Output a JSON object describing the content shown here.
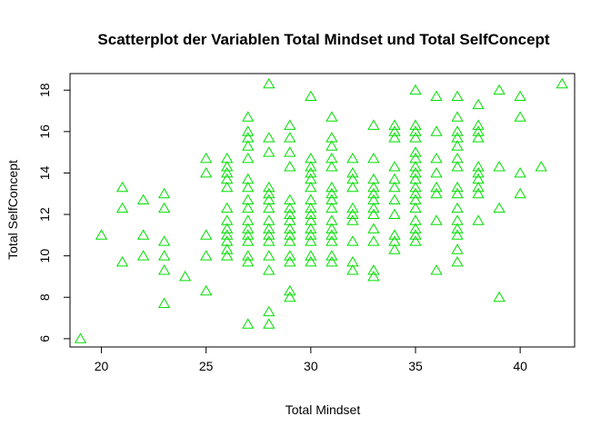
{
  "chart_data": {
    "type": "scatter",
    "title": "Scatterplot der Variablen Total Mindset und Total SelfConcept",
    "xlabel": "Total Mindset",
    "ylabel": "Total SelfConcept",
    "xlim": [
      18.5,
      42.6
    ],
    "ylim": [
      5.6,
      18.8
    ],
    "x_ticks": [
      20,
      25,
      30,
      35,
      40
    ],
    "y_ticks": [
      6,
      8,
      10,
      12,
      14,
      16,
      18
    ],
    "grid": false,
    "legend": "none",
    "marker": "triangle-open",
    "point_color": "#00dd00",
    "points": [
      [
        19,
        6
      ],
      [
        20,
        11
      ],
      [
        21,
        13.3
      ],
      [
        21,
        12.3
      ],
      [
        21,
        9.7
      ],
      [
        22,
        12.7
      ],
      [
        22,
        11
      ],
      [
        22,
        10
      ],
      [
        23,
        13
      ],
      [
        23,
        12.3
      ],
      [
        23,
        10.7
      ],
      [
        23,
        10
      ],
      [
        23,
        9.3
      ],
      [
        23,
        7.7
      ],
      [
        24,
        9
      ],
      [
        25,
        14.7
      ],
      [
        25,
        14
      ],
      [
        25,
        11
      ],
      [
        25,
        10
      ],
      [
        25,
        8.3
      ],
      [
        26,
        14.7
      ],
      [
        26,
        14.3
      ],
      [
        26,
        14
      ],
      [
        26,
        13.7
      ],
      [
        26,
        13.3
      ],
      [
        26,
        12.3
      ],
      [
        26,
        11.7
      ],
      [
        26,
        11.3
      ],
      [
        26,
        11
      ],
      [
        26,
        10.7
      ],
      [
        26,
        10.3
      ],
      [
        26,
        10
      ],
      [
        27,
        16.7
      ],
      [
        27,
        16
      ],
      [
        27,
        15.7
      ],
      [
        27,
        15.3
      ],
      [
        27,
        14.7
      ],
      [
        27,
        13.7
      ],
      [
        27,
        13.3
      ],
      [
        27,
        12.7
      ],
      [
        27,
        12.3
      ],
      [
        27,
        11.7
      ],
      [
        27,
        11.3
      ],
      [
        27,
        11
      ],
      [
        27,
        10.7
      ],
      [
        27,
        10
      ],
      [
        27,
        9.7
      ],
      [
        27,
        6.7
      ],
      [
        28,
        18.3
      ],
      [
        28,
        15.7
      ],
      [
        28,
        15
      ],
      [
        28,
        13.3
      ],
      [
        28,
        13
      ],
      [
        28,
        12.7
      ],
      [
        28,
        12.3
      ],
      [
        28,
        11.7
      ],
      [
        28,
        11.3
      ],
      [
        28,
        11
      ],
      [
        28,
        10.7
      ],
      [
        28,
        10
      ],
      [
        28,
        9.3
      ],
      [
        28,
        7.3
      ],
      [
        28,
        6.7
      ],
      [
        29,
        16.3
      ],
      [
        29,
        15.7
      ],
      [
        29,
        15
      ],
      [
        29,
        14.3
      ],
      [
        29,
        12.7
      ],
      [
        29,
        12.3
      ],
      [
        29,
        12
      ],
      [
        29,
        11.7
      ],
      [
        29,
        11.3
      ],
      [
        29,
        11
      ],
      [
        29,
        10.7
      ],
      [
        29,
        10
      ],
      [
        29,
        9.7
      ],
      [
        29,
        8.3
      ],
      [
        29,
        8
      ],
      [
        30,
        17.7
      ],
      [
        30,
        14.7
      ],
      [
        30,
        14.3
      ],
      [
        30,
        14
      ],
      [
        30,
        13.7
      ],
      [
        30,
        13.3
      ],
      [
        30,
        12.7
      ],
      [
        30,
        12.3
      ],
      [
        30,
        12
      ],
      [
        30,
        11.7
      ],
      [
        30,
        11.3
      ],
      [
        30,
        11
      ],
      [
        30,
        10.7
      ],
      [
        30,
        10
      ],
      [
        30,
        9.7
      ],
      [
        31,
        16.7
      ],
      [
        31,
        15.7
      ],
      [
        31,
        15.3
      ],
      [
        31,
        14.7
      ],
      [
        31,
        14.3
      ],
      [
        31,
        13.3
      ],
      [
        31,
        13
      ],
      [
        31,
        12.7
      ],
      [
        31,
        12.3
      ],
      [
        31,
        11.7
      ],
      [
        31,
        11.3
      ],
      [
        31,
        11
      ],
      [
        31,
        10.7
      ],
      [
        31,
        10
      ],
      [
        31,
        9.7
      ],
      [
        32,
        14.7
      ],
      [
        32,
        14
      ],
      [
        32,
        13.7
      ],
      [
        32,
        13.3
      ],
      [
        32,
        12.3
      ],
      [
        32,
        12
      ],
      [
        32,
        11.7
      ],
      [
        32,
        10.7
      ],
      [
        32,
        9.7
      ],
      [
        32,
        9.3
      ],
      [
        33,
        16.3
      ],
      [
        33,
        14.7
      ],
      [
        33,
        13.7
      ],
      [
        33,
        13.3
      ],
      [
        33,
        13
      ],
      [
        33,
        12.7
      ],
      [
        33,
        12.3
      ],
      [
        33,
        12
      ],
      [
        33,
        11.3
      ],
      [
        33,
        10.7
      ],
      [
        33,
        9.3
      ],
      [
        33,
        9
      ],
      [
        34,
        16.3
      ],
      [
        34,
        16
      ],
      [
        34,
        15.7
      ],
      [
        34,
        14.3
      ],
      [
        34,
        13.7
      ],
      [
        34,
        13.3
      ],
      [
        34,
        12.7
      ],
      [
        34,
        12
      ],
      [
        34,
        11
      ],
      [
        34,
        10.7
      ],
      [
        34,
        10.3
      ],
      [
        35,
        18
      ],
      [
        35,
        16.3
      ],
      [
        35,
        16
      ],
      [
        35,
        15.7
      ],
      [
        35,
        15
      ],
      [
        35,
        14.7
      ],
      [
        35,
        14.3
      ],
      [
        35,
        14
      ],
      [
        35,
        13.7
      ],
      [
        35,
        13.3
      ],
      [
        35,
        13
      ],
      [
        35,
        12.7
      ],
      [
        35,
        12.3
      ],
      [
        35,
        11.7
      ],
      [
        35,
        11.3
      ],
      [
        35,
        11
      ],
      [
        35,
        10.7
      ],
      [
        36,
        17.7
      ],
      [
        36,
        16
      ],
      [
        36,
        14.7
      ],
      [
        36,
        14
      ],
      [
        36,
        13.3
      ],
      [
        36,
        13
      ],
      [
        36,
        11.7
      ],
      [
        36,
        9.3
      ],
      [
        37,
        17.7
      ],
      [
        37,
        16.7
      ],
      [
        37,
        16
      ],
      [
        37,
        15.7
      ],
      [
        37,
        15.3
      ],
      [
        37,
        14.7
      ],
      [
        37,
        14.3
      ],
      [
        37,
        13.3
      ],
      [
        37,
        13
      ],
      [
        37,
        12.3
      ],
      [
        37,
        11.7
      ],
      [
        37,
        11.3
      ],
      [
        37,
        11
      ],
      [
        37,
        10.3
      ],
      [
        37,
        9.7
      ],
      [
        38,
        17.3
      ],
      [
        38,
        16.3
      ],
      [
        38,
        16
      ],
      [
        38,
        15.7
      ],
      [
        38,
        14.3
      ],
      [
        38,
        14
      ],
      [
        38,
        13.7
      ],
      [
        38,
        13.3
      ],
      [
        38,
        13
      ],
      [
        38,
        11.7
      ],
      [
        39,
        18
      ],
      [
        39,
        14.3
      ],
      [
        39,
        12.3
      ],
      [
        39,
        8
      ],
      [
        40,
        17.7
      ],
      [
        40,
        16.7
      ],
      [
        40,
        14
      ],
      [
        40,
        13
      ],
      [
        41,
        14.3
      ],
      [
        42,
        18.3
      ]
    ]
  }
}
